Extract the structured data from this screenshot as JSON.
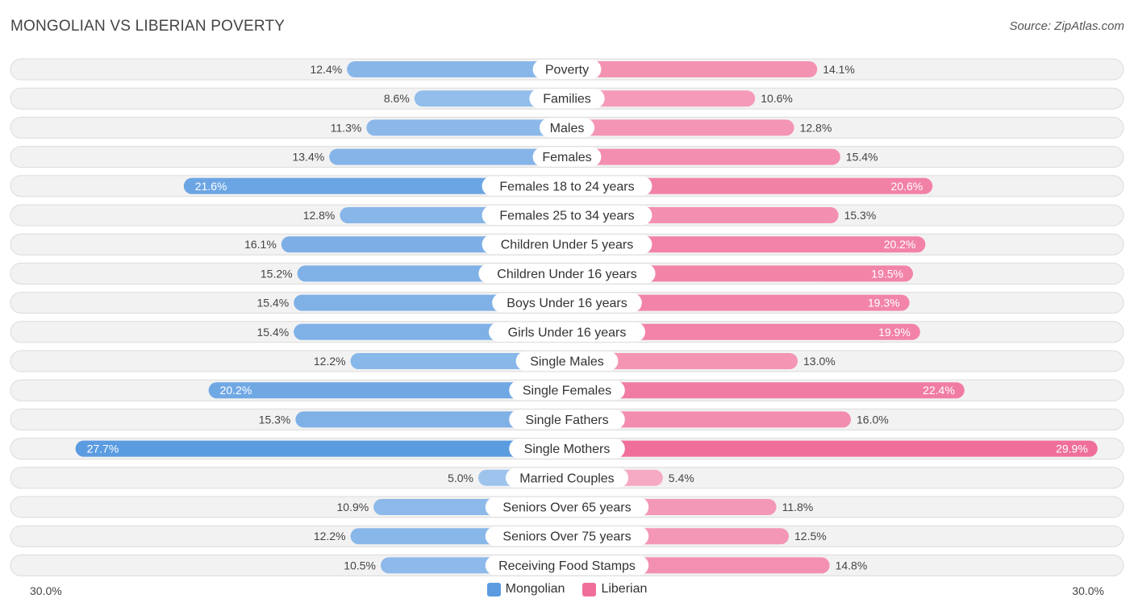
{
  "title": "MONGOLIAN VS LIBERIAN POVERTY",
  "source": "Source: ZipAtlas.com",
  "colors": {
    "mongolian": "#5b9be0",
    "liberian": "#f06f9a",
    "row_bg": "#f2f2f2",
    "row_border": "#dcdcdc"
  },
  "chart_data": {
    "type": "bar",
    "orientation": "horizontal-diverging",
    "title": "MONGOLIAN VS LIBERIAN POVERTY",
    "categories": [
      "Poverty",
      "Families",
      "Males",
      "Females",
      "Females 18 to 24 years",
      "Females 25 to 34 years",
      "Children Under 5 years",
      "Children Under 16 years",
      "Boys Under 16 years",
      "Girls Under 16 years",
      "Single Males",
      "Single Females",
      "Single Fathers",
      "Single Mothers",
      "Married Couples",
      "Seniors Over 65 years",
      "Seniors Over 75 years",
      "Receiving Food Stamps"
    ],
    "series": [
      {
        "name": "Mongolian",
        "values": [
          12.4,
          8.6,
          11.3,
          13.4,
          21.6,
          12.8,
          16.1,
          15.2,
          15.4,
          15.4,
          12.2,
          20.2,
          15.3,
          27.7,
          5.0,
          10.9,
          12.2,
          10.5
        ],
        "labels": [
          "12.4%",
          "8.6%",
          "11.3%",
          "13.4%",
          "21.6%",
          "12.8%",
          "16.1%",
          "15.2%",
          "15.4%",
          "15.4%",
          "12.2%",
          "20.2%",
          "15.3%",
          "27.7%",
          "5.0%",
          "10.9%",
          "12.2%",
          "10.5%"
        ]
      },
      {
        "name": "Liberian",
        "values": [
          14.1,
          10.6,
          12.8,
          15.4,
          20.6,
          15.3,
          20.2,
          19.5,
          19.3,
          19.9,
          13.0,
          22.4,
          16.0,
          29.9,
          5.4,
          11.8,
          12.5,
          14.8
        ],
        "labels": [
          "14.1%",
          "10.6%",
          "12.8%",
          "15.4%",
          "20.6%",
          "15.3%",
          "20.2%",
          "19.5%",
          "19.3%",
          "19.9%",
          "13.0%",
          "22.4%",
          "16.0%",
          "29.9%",
          "5.4%",
          "11.8%",
          "12.5%",
          "14.8%"
        ]
      }
    ],
    "xlim": [
      0,
      30
    ],
    "axis_min_label": "30.0%",
    "axis_max_label": "30.0%",
    "legend_position": "bottom-center"
  }
}
